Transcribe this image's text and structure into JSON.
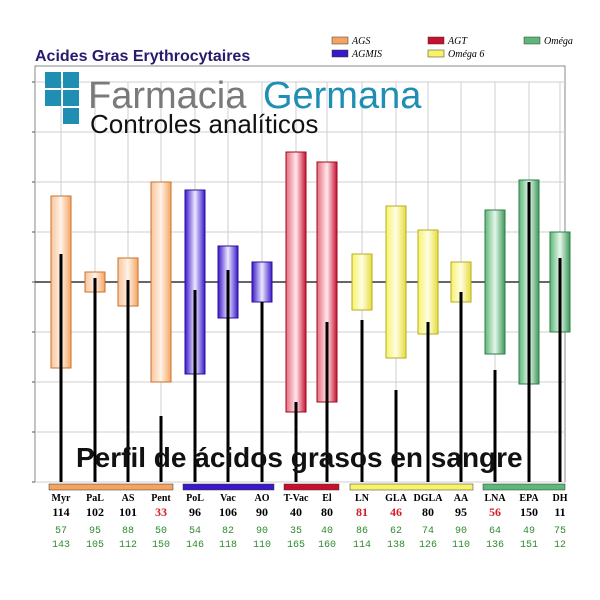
{
  "header": {
    "title": "Acides Gras Erythrocytaires"
  },
  "legend": [
    {
      "label": "AGS",
      "color": "#f4a460"
    },
    {
      "label": "AGT",
      "color": "#c8102e"
    },
    {
      "label": "Oméga",
      "color": "#5cb878"
    },
    {
      "label": "AGMIS",
      "color": "#3a18c8"
    },
    {
      "label": "Oméga 6",
      "color": "#f7f26a"
    }
  ],
  "brand": {
    "name_part1": "Farmacia",
    "name_part2": "Germana",
    "subtitle": "Controles analíticos",
    "color_gray": "#7a7a7a",
    "color_teal": "#1e8fb3"
  },
  "overlay": {
    "text": "Perfil de ácidos grasos en sangre"
  },
  "chart_data": {
    "type": "bar",
    "title": "Acides Gras Erythrocytaires",
    "reference_line": 100,
    "ylim": [
      0,
      200
    ],
    "groups": [
      {
        "name": "AGS",
        "color": "#f4a460",
        "members": [
          "Myr",
          "PaL",
          "AS",
          "Pent"
        ]
      },
      {
        "name": "AGMIS",
        "color": "#3a18c8",
        "members": [
          "PoL",
          "Vac",
          "AO"
        ]
      },
      {
        "name": "AGT",
        "color": "#c8102e",
        "members": [
          "T-Vac",
          "El"
        ]
      },
      {
        "name": "Oméga 6",
        "color": "#f7f26a",
        "members": [
          "LN",
          "GLA",
          "DGLA",
          "AA"
        ]
      },
      {
        "name": "Oméga",
        "color": "#5cb878",
        "members": [
          "LNA",
          "EPA",
          "DH"
        ]
      }
    ],
    "categories": [
      "Myr",
      "PaL",
      "AS",
      "Pent",
      "PoL",
      "Vac",
      "AO",
      "T-Vac",
      "El",
      "LN",
      "GLA",
      "DGLA",
      "AA",
      "LNA",
      "EPA",
      "DH"
    ],
    "values": [
      "114",
      "102",
      "101",
      "33",
      "96",
      "106",
      "90",
      "40",
      "80",
      "81",
      "46",
      "80",
      "95",
      "56",
      "150",
      "11"
    ],
    "value_flags": [
      "normal",
      "normal",
      "normal",
      "low",
      "normal",
      "normal",
      "normal",
      "normal",
      "normal",
      "low",
      "low",
      "normal",
      "normal",
      "low",
      "normal",
      "normal"
    ],
    "range_low": [
      "57",
      "95",
      "88",
      "50",
      "54",
      "82",
      "90",
      "35",
      "40",
      "86",
      "62",
      "74",
      "90",
      "64",
      "49",
      "75"
    ],
    "range_high": [
      "143",
      "105",
      "112",
      "150",
      "146",
      "118",
      "110",
      "165",
      "160",
      "114",
      "138",
      "126",
      "110",
      "136",
      "151",
      "12"
    ],
    "value_colors": {
      "normal": "#000000",
      "low": "#d0202a"
    }
  }
}
